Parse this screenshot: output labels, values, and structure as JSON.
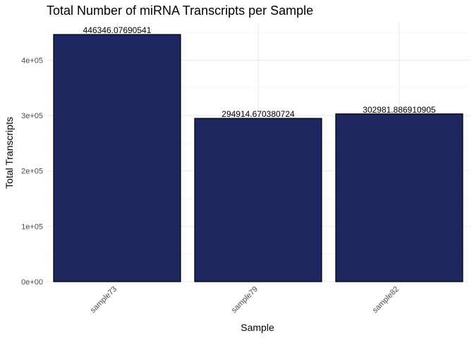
{
  "chart_data": {
    "type": "bar",
    "title": "Total Number of miRNA Transcripts per Sample",
    "xlabel": "Sample",
    "ylabel": "Total Transcripts",
    "categories": [
      "sample73",
      "sample79",
      "sample82"
    ],
    "values": [
      446346.07690541,
      294914.670380724,
      302981.886910905
    ],
    "data_labels": [
      "446346.07690541",
      "294914.670380724",
      "302981.886910905"
    ],
    "ylim": [
      0,
      468000
    ],
    "yticks": [
      0,
      100000,
      200000,
      300000,
      400000
    ],
    "ytick_labels": [
      "0e+00",
      "1e+05",
      "2e+05",
      "3e+05",
      "4e+05"
    ],
    "grid": true,
    "legend": "none",
    "colors": {
      "bar_fill": "#1f2761",
      "bar_stroke": "#000000"
    }
  }
}
